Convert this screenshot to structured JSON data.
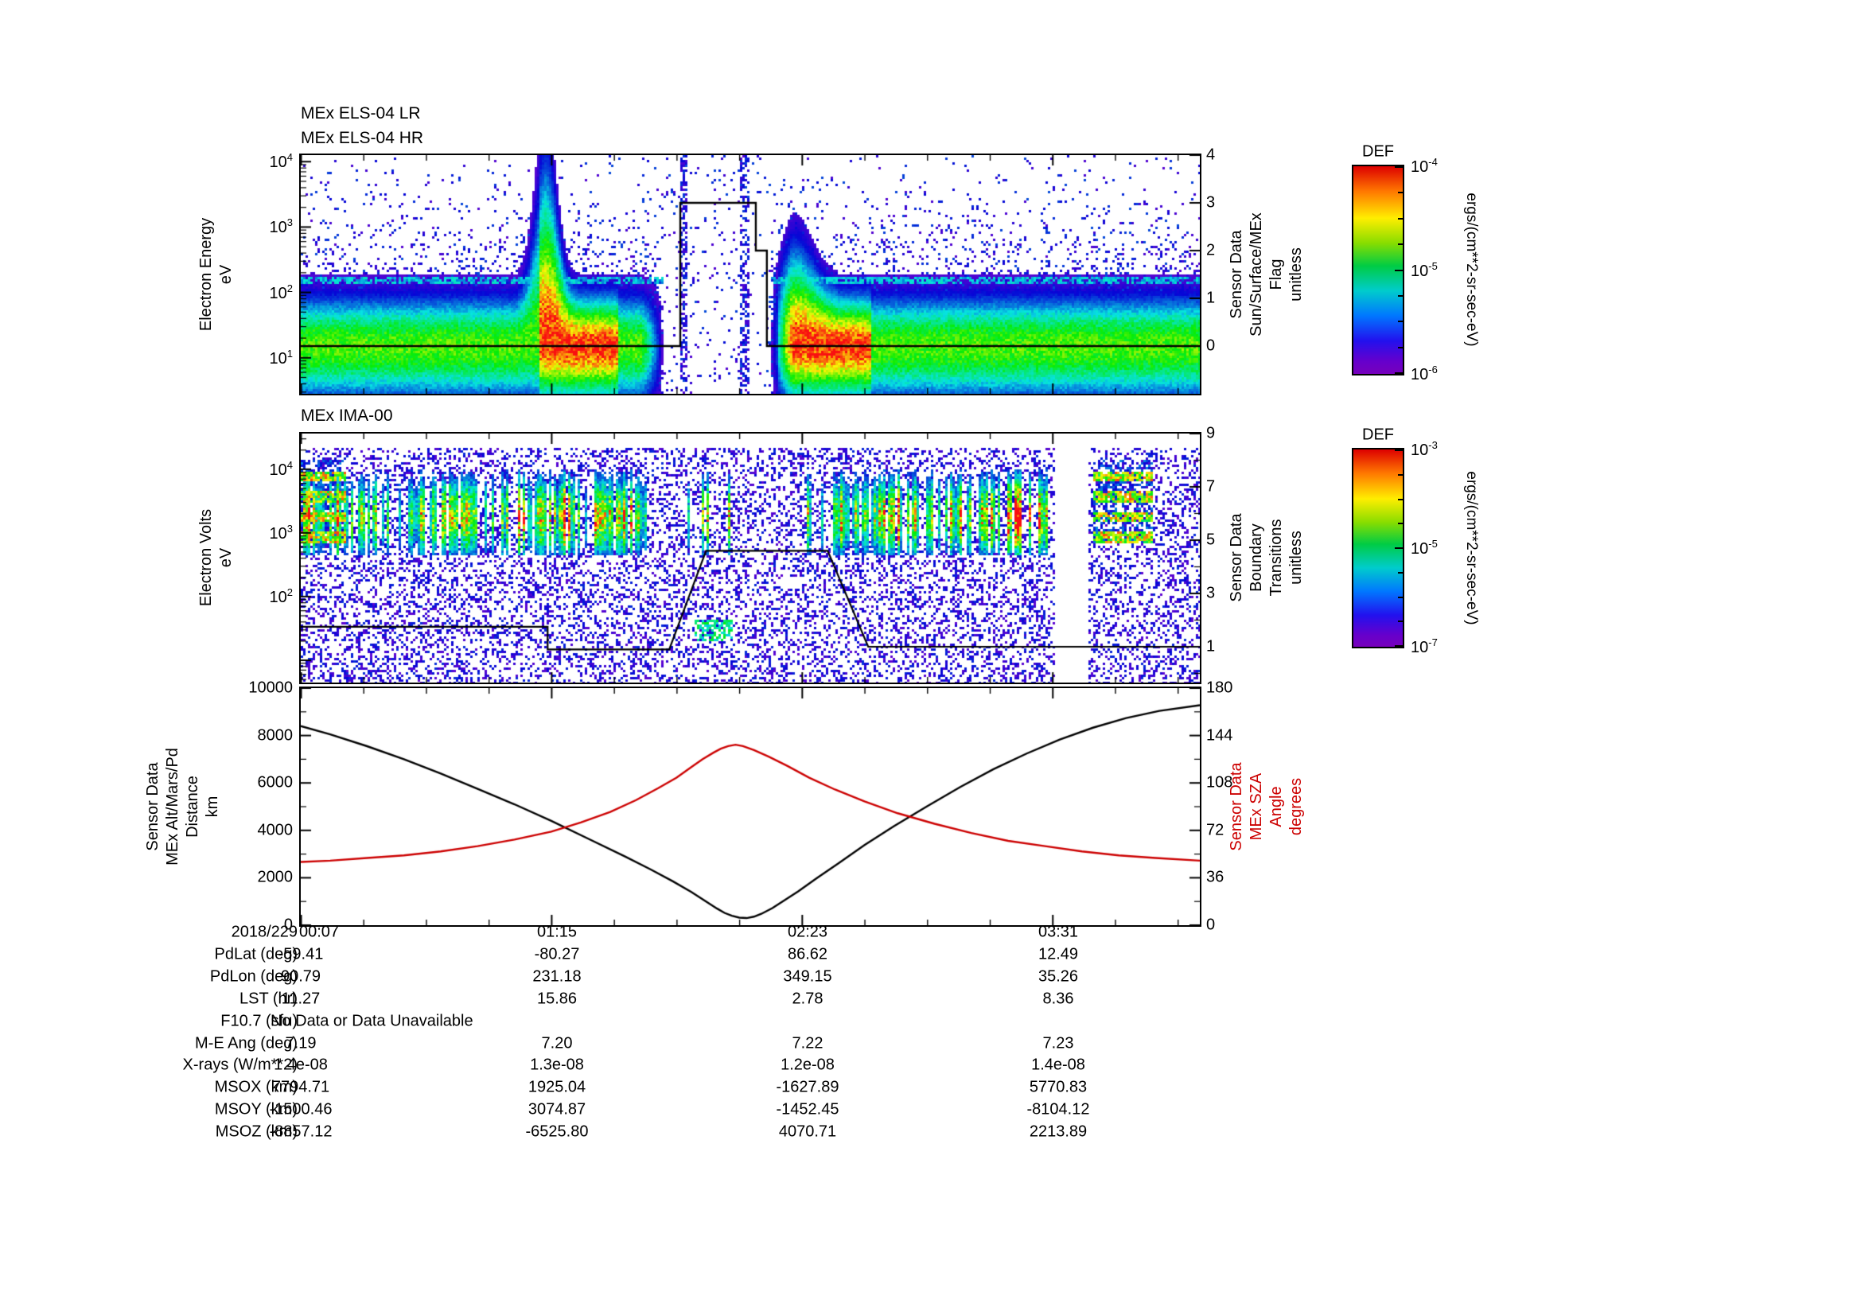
{
  "page": {
    "bg": "#ffffff"
  },
  "panels": {
    "els": {
      "titles": [
        "MEx ELS-04 LR",
        "MEx ELS-04 HR"
      ],
      "left_label": "Electron Energy\neV",
      "right_label": "Sensor Data\nSun/Surface/MEx\nFlag\nunitless",
      "left_ticks": [
        "10^4",
        "10^3",
        "10^2",
        "10^1"
      ],
      "right_ticks": [
        "4",
        "3",
        "2",
        "1",
        "0"
      ]
    },
    "ima": {
      "title": "MEx IMA-00",
      "left_label": "Electron Volts\neV",
      "right_label": "Sensor Data\nBoundary\nTransitions\nunitless",
      "left_ticks": [
        "10^4",
        "10^3",
        "10^2"
      ],
      "right_ticks": [
        "9",
        "7",
        "5",
        "3",
        "1"
      ]
    },
    "tsr": {
      "left_label": "Sensor Data\nMEx Alt/Mars/Pd\nDistance\nkm",
      "right_label": "Sensor Data\nMEx SZA\nAngle\ndegrees",
      "left_ticks": [
        "10000",
        "8000",
        "6000",
        "4000",
        "2000",
        "0"
      ],
      "right_ticks": [
        "180",
        "144",
        "108",
        "72",
        "36",
        "0"
      ],
      "right_color": "#cc0000"
    }
  },
  "colorbars": [
    {
      "title": "DEF",
      "units": "ergs/(cm**2-sr-sec-eV)",
      "ticks": [
        "10^-4",
        "10^-5",
        "10^-6"
      ]
    },
    {
      "title": "DEF",
      "units": "ergs/(cm**2-sr-sec-eV)",
      "ticks": [
        "10^-3",
        "10^-5",
        "10^-7"
      ]
    }
  ],
  "table": {
    "rows": [
      {
        "label": "2018/229",
        "values": [
          "00:07",
          "01:15",
          "02:23",
          "03:31"
        ]
      },
      {
        "label": "PdLat (deg)",
        "values": [
          "-59.41",
          "-80.27",
          "86.62",
          "12.49"
        ]
      },
      {
        "label": "PdLon (deg)",
        "values": [
          "90.79",
          "231.18",
          "349.15",
          "35.26"
        ]
      },
      {
        "label": "LST (hr)",
        "values": [
          "11.27",
          "15.86",
          "2.78",
          "8.36"
        ]
      },
      {
        "label": "F10.7 (sfu)",
        "values": [
          "No Data or Data Unavailable"
        ],
        "align": "left"
      },
      {
        "label": "M-E Ang (deg)",
        "values": [
          "7.19",
          "7.20",
          "7.22",
          "7.23"
        ]
      },
      {
        "label": "X-rays (W/m**2)",
        "values": [
          "1.4e-08",
          "1.3e-08",
          "1.2e-08",
          "1.4e-08"
        ]
      },
      {
        "label": "MSOX (km)",
        "values": [
          "7794.71",
          "1925.04",
          "-1627.89",
          "5770.83"
        ]
      },
      {
        "label": "MSOY (km)",
        "values": [
          "-1500.46",
          "3074.87",
          "-1452.45",
          "-8104.12"
        ]
      },
      {
        "label": "MSOZ (km)",
        "values": [
          "-8857.12",
          "-6525.80",
          "4070.71",
          "2213.89"
        ]
      }
    ]
  },
  "chart_data": [
    {
      "type": "heatmap",
      "title": "MEx ELS-04 LR / MEx ELS-04 HR electron energy-time spectrogram",
      "xlabel": "time on 2018/229",
      "ylabel": "Electron Energy (eV)",
      "x_range_min": [
        7,
        251
      ],
      "x_tick_minutes": [
        7,
        75,
        143,
        211
      ],
      "x_tick_labels": [
        "00:07",
        "01:15",
        "02:23",
        "03:31"
      ],
      "y_scale": "log",
      "y_range_ev": [
        3,
        12500
      ],
      "value_units": "DEF ergs/(cm**2-sr-sec-eV)",
      "value_range": [
        1e-06,
        0.0001
      ],
      "features": {
        "main_band_ev": [
          7,
          90
        ],
        "intense_intervals_min": [
          [
            72,
            93
          ],
          [
            136.5,
            162
          ]
        ],
        "energization_cone_center_min": 73.5,
        "data_gap_min": [
          105.5,
          134.5
        ],
        "background": "sparse low-flux counts up to ~3 keV"
      },
      "overlay_flag": {
        "name": "Sensor Data Sun/Surface/MEx Flag (unitless)",
        "axis_range": [
          -1,
          4
        ],
        "points_min_value": [
          [
            7,
            0
          ],
          [
            110,
            0
          ],
          [
            110,
            3
          ],
          [
            130.5,
            3
          ],
          [
            130.5,
            2
          ],
          [
            133.5,
            2
          ],
          [
            133.5,
            0
          ],
          [
            251,
            0
          ]
        ]
      },
      "seed": 20180229
    },
    {
      "type": "heatmap",
      "title": "MEx IMA-00 ion energy-time spectrogram",
      "xlabel": "time on 2018/229",
      "ylabel": "Electron Volts (eV)",
      "x_range_min": [
        7,
        251
      ],
      "x_tick_minutes": [
        7,
        75,
        143,
        211
      ],
      "x_tick_labels": [
        "00:07",
        "01:15",
        "02:23",
        "03:31"
      ],
      "y_scale": "log",
      "y_range_ev": [
        5,
        36000
      ],
      "value_units": "DEF ergs/(cm**2-sr-sec-eV)",
      "value_range": [
        1e-07,
        0.001
      ],
      "features": {
        "striped_ion_band_ev": [
          450,
          9000
        ],
        "striped_intervals_min": [
          [
            7,
            101
          ],
          [
            144,
            210
          ]
        ],
        "horizontal_band_blobs_min": [
          [
            7,
            19
          ],
          [
            222,
            238.5
          ]
        ],
        "low_energy_blob": {
          "t_min": [
            114,
            124
          ],
          "ev": [
            20,
            42
          ]
        },
        "no_data_min": [
          [
            212,
            221
          ]
        ],
        "background": "dense sparse purple counts at all energies"
      },
      "overlay_boundary": {
        "name": "Sensor Data Boundary Transitions (unitless)",
        "axis_range": [
          -0.3,
          9
        ],
        "points_min_value": [
          [
            7,
            1.75
          ],
          [
            74,
            1.75
          ],
          [
            74,
            0.9
          ],
          [
            107,
            0.9
          ],
          [
            117,
            4.6
          ],
          [
            150,
            4.6
          ],
          [
            161,
            1.0
          ],
          [
            251,
            1.0
          ]
        ]
      },
      "seed": 41
    },
    {
      "type": "line",
      "x_tick_minutes": [
        7,
        75,
        143,
        211
      ],
      "x_tick_labels": [
        "00:07",
        "01:15",
        "02:23",
        "03:31"
      ],
      "left_axis": {
        "name": "Sensor Data MEx Alt/Mars/Pd Distance (km)",
        "range": [
          0,
          10000
        ]
      },
      "right_axis": {
        "name": "Sensor Data MEx SZA Angle (degrees)",
        "range": [
          0,
          180
        ]
      },
      "series": [
        {
          "name": "altitude_km",
          "color": "#000000",
          "axis": "left",
          "points": [
            [
              7,
              8400
            ],
            [
              15,
              8050
            ],
            [
              25,
              7550
            ],
            [
              35,
              7000
            ],
            [
              45,
              6400
            ],
            [
              55,
              5750
            ],
            [
              65,
              5100
            ],
            [
              75,
              4400
            ],
            [
              85,
              3650
            ],
            [
              95,
              2900
            ],
            [
              102,
              2350
            ],
            [
              108,
              1850
            ],
            [
              113,
              1400
            ],
            [
              117,
              1000
            ],
            [
              120,
              700
            ],
            [
              122,
              520
            ],
            [
              124,
              400
            ],
            [
              126,
              320
            ],
            [
              128,
              300
            ],
            [
              130,
              360
            ],
            [
              132,
              480
            ],
            [
              135,
              720
            ],
            [
              138,
              1020
            ],
            [
              142,
              1430
            ],
            [
              147,
              1980
            ],
            [
              153,
              2620
            ],
            [
              160,
              3380
            ],
            [
              168,
              4180
            ],
            [
              177,
              5020
            ],
            [
              186,
              5830
            ],
            [
              195,
              6580
            ],
            [
              204,
              7240
            ],
            [
              213,
              7830
            ],
            [
              222,
              8330
            ],
            [
              231,
              8740
            ],
            [
              240,
              9040
            ],
            [
              251,
              9280
            ]
          ]
        },
        {
          "name": "sza_deg",
          "color": "#cc0000",
          "axis": "right",
          "points": [
            [
              7,
              48
            ],
            [
              15,
              49
            ],
            [
              25,
              51
            ],
            [
              35,
              53
            ],
            [
              45,
              56
            ],
            [
              55,
              60
            ],
            [
              65,
              65
            ],
            [
              75,
              71
            ],
            [
              83,
              78
            ],
            [
              91,
              86
            ],
            [
              98,
              95
            ],
            [
              104,
              104
            ],
            [
              109,
              112
            ],
            [
              113,
              120
            ],
            [
              116,
              126
            ],
            [
              119,
              131
            ],
            [
              121,
              134
            ],
            [
              123,
              136
            ],
            [
              125,
              137
            ],
            [
              127,
              136
            ],
            [
              130,
              133
            ],
            [
              134,
              128
            ],
            [
              139,
              121
            ],
            [
              145,
              112
            ],
            [
              152,
              103
            ],
            [
              160,
              94
            ],
            [
              169,
              85
            ],
            [
              179,
              77
            ],
            [
              189,
              70
            ],
            [
              199,
              64
            ],
            [
              209,
              60
            ],
            [
              219,
              56
            ],
            [
              229,
              53
            ],
            [
              239,
              51
            ],
            [
              251,
              49
            ]
          ]
        }
      ]
    }
  ]
}
